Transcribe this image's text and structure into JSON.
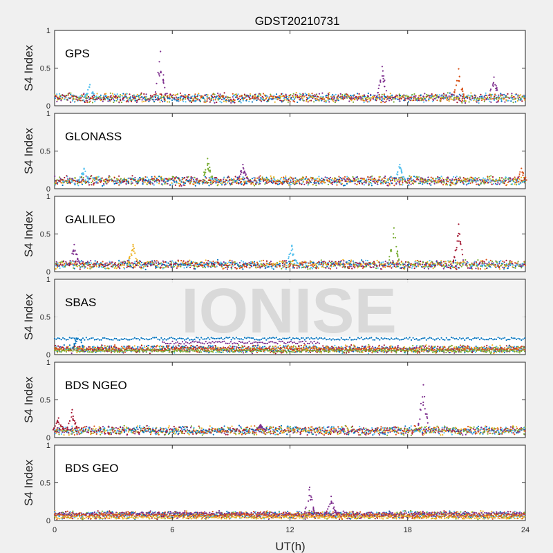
{
  "figure": {
    "title": "GDST20210731",
    "xlabel": "UT(h)",
    "watermark": "IONISE"
  },
  "colors": [
    "#0072BD",
    "#D95319",
    "#EDB120",
    "#7E2F8E",
    "#77AC30",
    "#4DBEEE",
    "#A2142F"
  ],
  "chart_data": [
    {
      "type": "scatter",
      "panel_label": "GPS",
      "ylabel": "S4 Index",
      "xlim": [
        0,
        24
      ],
      "ylim": [
        0,
        1
      ],
      "xticks": [
        0,
        6,
        12,
        18,
        24
      ],
      "yticks": [
        0,
        0.5,
        1
      ],
      "ytick_labels": [
        "0",
        "0.5",
        "1"
      ],
      "baseline": 0.1,
      "spikes": [
        {
          "x": 5.4,
          "y": 0.72,
          "series": 3
        },
        {
          "x": 1.8,
          "y": 0.28,
          "series": 5
        },
        {
          "x": 16.7,
          "y": 0.52,
          "series": 3
        },
        {
          "x": 20.6,
          "y": 0.49,
          "series": 1
        },
        {
          "x": 22.4,
          "y": 0.38,
          "series": 3
        }
      ]
    },
    {
      "type": "scatter",
      "panel_label": "GLONASS",
      "ylabel": "S4 Index",
      "xlim": [
        0,
        24
      ],
      "ylim": [
        0,
        1
      ],
      "xticks": [
        0,
        6,
        12,
        18,
        24
      ],
      "yticks": [
        0,
        0.5,
        1
      ],
      "ytick_labels": [
        "0",
        "0.5",
        "1"
      ],
      "baseline": 0.1,
      "spikes": [
        {
          "x": 1.5,
          "y": 0.27,
          "series": 5
        },
        {
          "x": 7.8,
          "y": 0.4,
          "series": 4
        },
        {
          "x": 9.6,
          "y": 0.32,
          "series": 3
        },
        {
          "x": 17.6,
          "y": 0.32,
          "series": 5
        },
        {
          "x": 23.8,
          "y": 0.27,
          "series": 1
        }
      ]
    },
    {
      "type": "scatter",
      "panel_label": "GALILEO",
      "ylabel": "S4 Index",
      "xlim": [
        0,
        24
      ],
      "ylim": [
        0,
        1
      ],
      "xticks": [
        0,
        6,
        12,
        18,
        24
      ],
      "yticks": [
        0,
        0.5,
        1
      ],
      "ytick_labels": [
        "0",
        "0.5",
        "1"
      ],
      "baseline": 0.09,
      "spikes": [
        {
          "x": 1.0,
          "y": 0.36,
          "series": 3
        },
        {
          "x": 4.0,
          "y": 0.36,
          "series": 2
        },
        {
          "x": 12.1,
          "y": 0.35,
          "series": 5
        },
        {
          "x": 17.3,
          "y": 0.58,
          "series": 4
        },
        {
          "x": 20.6,
          "y": 0.63,
          "series": 6
        }
      ]
    },
    {
      "type": "scatter",
      "panel_label": "SBAS",
      "ylabel": "S4 Index",
      "xlim": [
        0,
        24
      ],
      "ylim": [
        0,
        1
      ],
      "xticks": [
        0,
        6,
        12,
        18,
        24
      ],
      "yticks": [
        0,
        0.5,
        1
      ],
      "ytick_labels": [
        "0",
        "0.5",
        "1"
      ],
      "baseline": 0.07,
      "bands": [
        {
          "series": 0,
          "level": 0.21
        },
        {
          "series": 3,
          "level": 0.16,
          "from": 5.5,
          "to": 13.5
        },
        {
          "series": 1,
          "level": 0.07
        },
        {
          "series": 4,
          "level": 0.05
        }
      ],
      "spikes": [
        {
          "x": 1.2,
          "y": 0.32,
          "series": 0
        }
      ]
    },
    {
      "type": "scatter",
      "panel_label": "BDS NGEO",
      "ylabel": "S4 Index",
      "xlim": [
        0,
        24
      ],
      "ylim": [
        0,
        1
      ],
      "xticks": [
        0,
        6,
        12,
        18,
        24
      ],
      "yticks": [
        0,
        0.5,
        1
      ],
      "ytick_labels": [
        "0",
        "0.5",
        "1"
      ],
      "baseline": 0.09,
      "spikes": [
        {
          "x": 0.2,
          "y": 0.26,
          "series": 6
        },
        {
          "x": 0.9,
          "y": 0.37,
          "series": 6
        },
        {
          "x": 10.5,
          "y": 0.17,
          "series": 3
        },
        {
          "x": 18.8,
          "y": 0.7,
          "series": 3
        }
      ]
    },
    {
      "type": "scatter",
      "panel_label": "BDS GEO",
      "ylabel": "S4 Index",
      "xlim": [
        0,
        24
      ],
      "ylim": [
        0,
        1
      ],
      "xticks": [
        0,
        6,
        12,
        18,
        24
      ],
      "yticks": [
        0,
        0.5,
        1
      ],
      "ytick_labels": [
        "0",
        "0.5",
        "1"
      ],
      "xtick_labels": [
        "0",
        "6",
        "12",
        "18",
        "24"
      ],
      "baseline": 0.07,
      "bands": [
        {
          "series": 3,
          "level": 0.09
        },
        {
          "series": 1,
          "level": 0.07
        },
        {
          "series": 2,
          "level": 0.04
        }
      ],
      "spikes": [
        {
          "x": 13.0,
          "y": 0.44,
          "series": 3
        },
        {
          "x": 14.1,
          "y": 0.32,
          "series": 3
        }
      ]
    }
  ]
}
